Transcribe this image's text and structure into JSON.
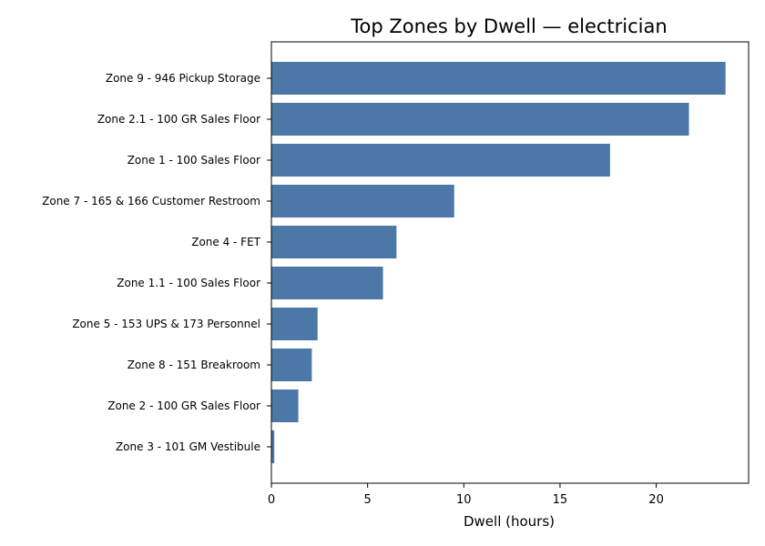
{
  "chart_data": {
    "type": "bar",
    "orientation": "horizontal",
    "title": "Top Zones by Dwell — electrician",
    "xlabel": "Dwell (hours)",
    "ylabel": "",
    "xlim": [
      0,
      24.8
    ],
    "xticks": [
      0,
      5,
      10,
      15,
      20
    ],
    "grid": false,
    "bar_color": "#4c78a8",
    "categories": [
      "Zone 9 - 946 Pickup Storage",
      "Zone 2.1 - 100 GR Sales Floor",
      "Zone 1 - 100 Sales Floor",
      "Zone 7 - 165 & 166 Customer Restroom",
      "Zone 4 - FET",
      "Zone 1.1 - 100 Sales Floor",
      "Zone 5 - 153 UPS & 173 Personnel",
      "Zone 8 - 151 Breakroom",
      "Zone 2 - 100 GR Sales Floor",
      "Zone 3 - 101 GM Vestibule"
    ],
    "values": [
      23.6,
      21.7,
      17.6,
      9.5,
      6.5,
      5.8,
      2.4,
      2.1,
      1.4,
      0.15
    ]
  }
}
